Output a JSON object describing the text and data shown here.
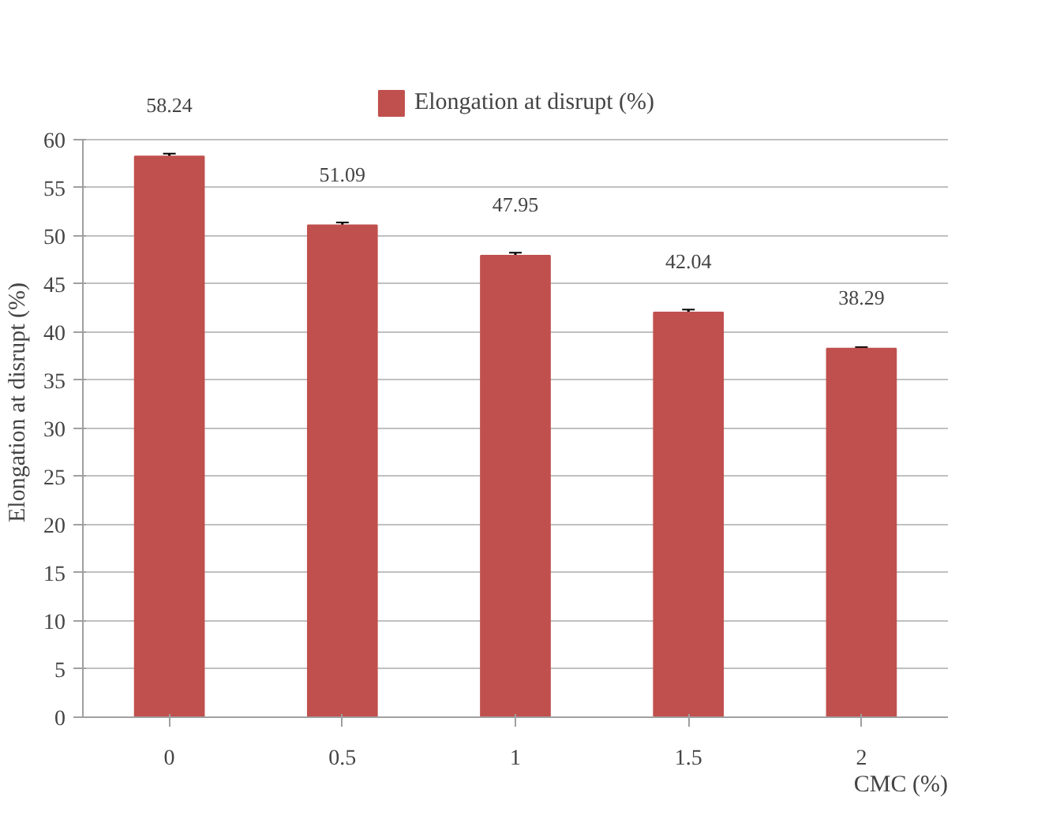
{
  "chart_data": {
    "type": "bar",
    "categories": [
      "0",
      "0.5",
      "1",
      "1.5",
      "2"
    ],
    "series": [
      {
        "name": "Elongation at disrupt (%)",
        "color": "#c0504d",
        "values": [
          58.24,
          51.09,
          47.95,
          42.04,
          38.29
        ],
        "errors": [
          0.3,
          0.3,
          0.3,
          0.3,
          0.15
        ]
      }
    ],
    "xlabel": "CMC (%)",
    "ylabel": "Elongation at disrupt (%)",
    "ylim": [
      0,
      60
    ],
    "yticks": [
      0,
      5,
      10,
      15,
      20,
      25,
      30,
      35,
      40,
      45,
      50,
      55,
      60
    ],
    "grid": "y",
    "legend": "top",
    "data_labels": true
  }
}
